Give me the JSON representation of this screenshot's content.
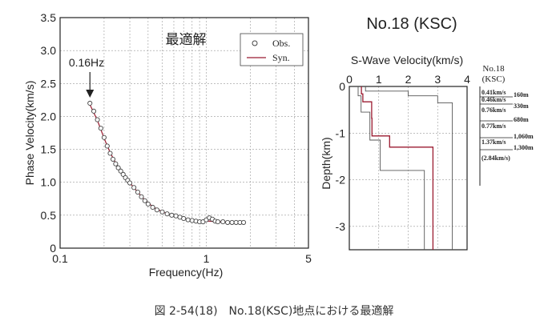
{
  "caption": "図 2-54(18)　No.18(KSC)地点における最適解",
  "chart_data": [
    {
      "type": "scatter",
      "title": "最適解",
      "xlabel": "Frequency(Hz)",
      "ylabel": "Phase Velocity(km/s)",
      "xscale": "log",
      "xlim": [
        0.1,
        5
      ],
      "ylim": [
        0,
        3.5
      ],
      "grid": true,
      "legend_position": "top-right",
      "x_ticks": [
        "0.1",
        "1",
        "5"
      ],
      "y_ticks": [
        "0",
        "0.5",
        "1.0",
        "1.5",
        "2.0",
        "2.5",
        "3.0",
        "3.5"
      ],
      "annotation": {
        "text": "0.16Hz",
        "x": 0.16,
        "y": 2.2
      },
      "series": [
        {
          "name": "Obs.",
          "kind": "points",
          "x": [
            0.16,
            0.17,
            0.18,
            0.19,
            0.2,
            0.21,
            0.22,
            0.23,
            0.24,
            0.25,
            0.26,
            0.27,
            0.28,
            0.29,
            0.3,
            0.32,
            0.34,
            0.36,
            0.38,
            0.4,
            0.43,
            0.46,
            0.5,
            0.54,
            0.58,
            0.62,
            0.66,
            0.7,
            0.75,
            0.8,
            0.85,
            0.9,
            0.95,
            1.0,
            1.05,
            1.1,
            1.15,
            1.2,
            1.3,
            1.4,
            1.5,
            1.6,
            1.7,
            1.8
          ],
          "y": [
            2.2,
            2.08,
            1.95,
            1.82,
            1.68,
            1.55,
            1.44,
            1.35,
            1.28,
            1.22,
            1.17,
            1.12,
            1.07,
            1.03,
            0.99,
            0.92,
            0.85,
            0.78,
            0.72,
            0.67,
            0.62,
            0.58,
            0.55,
            0.52,
            0.5,
            0.49,
            0.47,
            0.45,
            0.43,
            0.42,
            0.41,
            0.4,
            0.4,
            0.43,
            0.46,
            0.44,
            0.41,
            0.4,
            0.4,
            0.39,
            0.39,
            0.39,
            0.39,
            0.39
          ]
        },
        {
          "name": "Syn.",
          "kind": "line",
          "color": "#9b1b30",
          "x": [
            0.16,
            0.18,
            0.2,
            0.22,
            0.25,
            0.28,
            0.3,
            0.34,
            0.38,
            0.43,
            0.5,
            0.58,
            0.66,
            0.75,
            0.85,
            0.95,
            1.05,
            1.2,
            1.4,
            1.6,
            1.8
          ],
          "y": [
            2.18,
            1.94,
            1.67,
            1.45,
            1.22,
            1.07,
            0.99,
            0.85,
            0.73,
            0.63,
            0.55,
            0.5,
            0.47,
            0.44,
            0.42,
            0.41,
            0.41,
            0.4,
            0.4,
            0.39,
            0.39
          ]
        }
      ]
    },
    {
      "type": "line",
      "title": "No.18 (KSC)",
      "subtitle": "S-Wave Velocity(km/s)",
      "xlabel": "S-Wave Velocity(km/s)",
      "ylabel": "Depth(km)",
      "xlim": [
        0,
        4
      ],
      "ylim": [
        -3.5,
        0
      ],
      "x_ticks": [
        "0",
        "1",
        "2",
        "3",
        "4"
      ],
      "y_ticks": [
        "0",
        "-1",
        "-2",
        "-3"
      ],
      "grid": true,
      "series": [
        {
          "name": "best",
          "color": "#9b1b30",
          "x": [
            0.41,
            0.41,
            0.46,
            0.46,
            0.76,
            0.76,
            0.77,
            0.77,
            1.37,
            1.37,
            2.84,
            2.84
          ],
          "y": [
            0,
            -0.16,
            -0.16,
            -0.33,
            -0.33,
            -0.68,
            -0.68,
            -1.06,
            -1.06,
            -1.3,
            -1.3,
            -3.5
          ]
        },
        {
          "name": "bound-low",
          "color": "#555555",
          "x": [
            0.3,
            0.3,
            0.4,
            0.4,
            0.7,
            0.7,
            1.05,
            1.05,
            2.55,
            2.55
          ],
          "y": [
            0,
            -0.2,
            -0.2,
            -0.55,
            -0.55,
            -1.15,
            -1.15,
            -1.8,
            -1.8,
            -3.5
          ]
        },
        {
          "name": "bound-high",
          "color": "#555555",
          "x": [
            0.55,
            0.55,
            2.0,
            2.0,
            3.0,
            3.0,
            3.5,
            3.5
          ],
          "y": [
            0,
            -0.1,
            -0.1,
            -0.2,
            -0.2,
            -0.35,
            -0.35,
            -3.5
          ]
        }
      ]
    }
  ],
  "layer_table": {
    "header": [
      "No.18",
      "(KSC)"
    ],
    "velocities": [
      "0.41km/s",
      "0.46km/s",
      "0.76km/s",
      "0.77km/s",
      "1.37km/s",
      "(2.84km/s)"
    ],
    "depths": [
      "160m",
      "330m",
      "680m",
      "1,060m",
      "1,300m"
    ]
  }
}
